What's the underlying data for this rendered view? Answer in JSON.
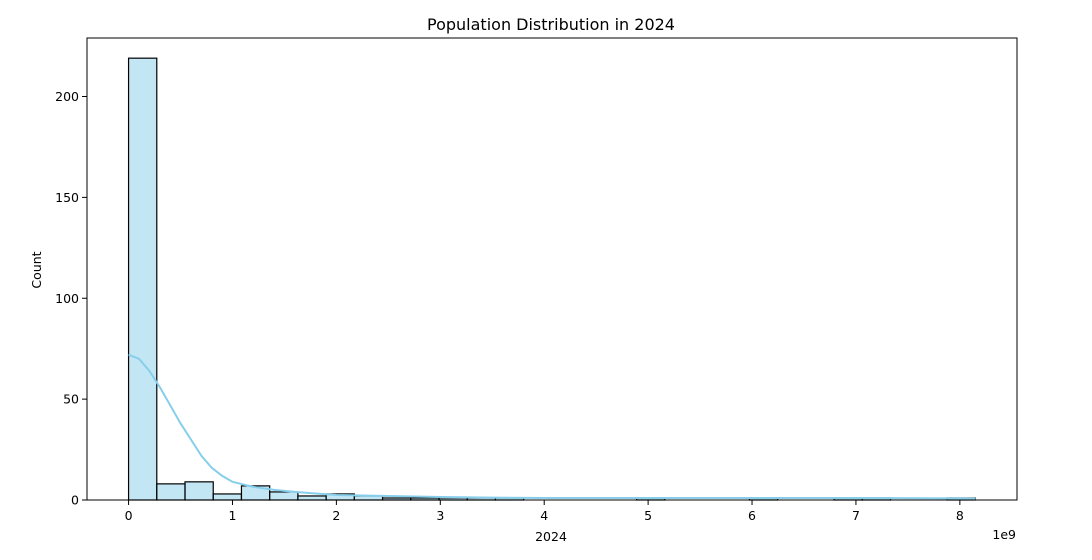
{
  "chart_data": {
    "type": "bar",
    "title": "Population Distribution in 2024",
    "xlabel": "2024",
    "ylabel": "Count",
    "x_offset_label": "1e9",
    "x_tick_values": [
      0,
      1,
      2,
      3,
      4,
      5,
      6,
      7,
      8
    ],
    "x_tick_labels": [
      "0",
      "1",
      "2",
      "3",
      "4",
      "5",
      "6",
      "7",
      "8"
    ],
    "y_tick_values": [
      0,
      50,
      100,
      150,
      200
    ],
    "y_tick_labels": [
      "0",
      "50",
      "100",
      "150",
      "200"
    ],
    "xlim": [
      -0.4,
      8.55
    ],
    "ylim": [
      0,
      229
    ],
    "bin_start": 0,
    "bin_width": 0.2716,
    "bin_counts": [
      219,
      8,
      9,
      3,
      7,
      4,
      2,
      3,
      2,
      1,
      1,
      1,
      1,
      1,
      0,
      0,
      0,
      0,
      1,
      0,
      0,
      0,
      1,
      0,
      0,
      1,
      1,
      0,
      0,
      1
    ],
    "kde": {
      "x": [
        0,
        0.1,
        0.2,
        0.3,
        0.4,
        0.5,
        0.6,
        0.7,
        0.8,
        0.9,
        1.0,
        1.2,
        1.4,
        1.6,
        1.8,
        2.0,
        2.5,
        3.0,
        3.5,
        4.0,
        5.0,
        6.0,
        7.0,
        8.0,
        8.15
      ],
      "y": [
        72,
        70,
        64,
        56,
        47,
        38,
        30,
        22,
        16,
        12,
        9,
        6.5,
        5,
        4,
        3.2,
        2.5,
        2,
        1.5,
        1.2,
        1,
        1,
        1,
        1,
        0.8,
        0.7
      ]
    },
    "grid": false,
    "colors": {
      "bar": "#87ceeb",
      "kde": "#87ceeb",
      "edge": "#000000"
    }
  }
}
